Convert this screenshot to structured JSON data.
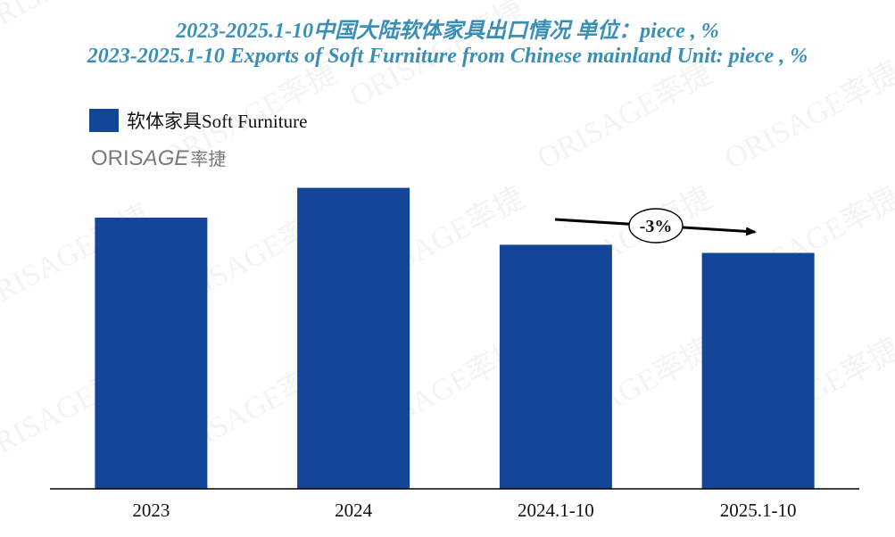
{
  "title_zh": "2023-2025.1-10中国大陆软体家具出口情况 单位：piece , %",
  "title_en": "2023-2025.1-10 Exports of Soft Furniture from Chinese mainland Unit: piece , %",
  "logo": {
    "text": "ORISAGE率捷",
    "ori": "ORI",
    "sage": "SAGE",
    "cn": "率捷",
    "color": "#7a7a7a"
  },
  "watermark_text": "ORISAGE率捷",
  "annotation": {
    "label": "-3%",
    "color": "#1fae55"
  },
  "colors": {
    "bar": "#134696",
    "title": "#3a8fb7",
    "axis": "#000000"
  },
  "chart_data": {
    "type": "bar",
    "title": "2023-2025.1-10 Exports of Soft Furniture from Chinese mainland Unit: piece , %",
    "categories": [
      "2023",
      "2024",
      "2024.1-10",
      "2025.1-10"
    ],
    "series": [
      {
        "name": "软体家具Soft Furniture",
        "color": "#134696",
        "values": [
          100,
          111,
          90,
          87
        ]
      }
    ],
    "ylim": [
      0,
      125
    ],
    "grid": false,
    "legend": "top-left",
    "xlabel": "",
    "ylabel": ""
  }
}
